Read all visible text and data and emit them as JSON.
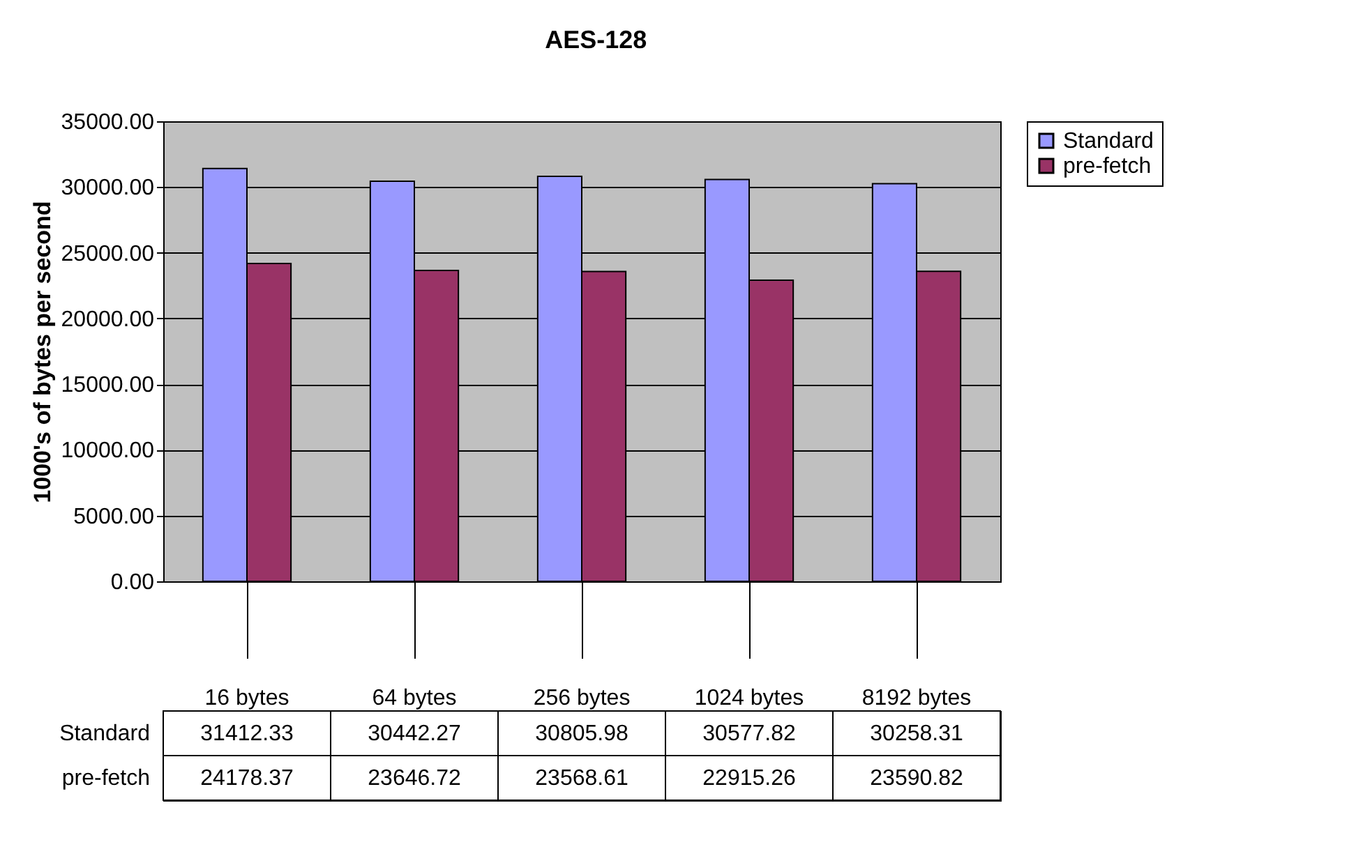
{
  "chart_data": {
    "type": "bar",
    "title": "AES-128",
    "ylabel": "1000's of bytes per second",
    "categories": [
      "16 bytes",
      "64 bytes",
      "256 bytes",
      "1024 bytes",
      "8192 bytes"
    ],
    "series": [
      {
        "name": "Standard",
        "color": "#9999ff",
        "values": [
          31412.33,
          30442.27,
          30805.98,
          30577.82,
          30258.31
        ]
      },
      {
        "name": "pre-fetch",
        "color": "#993366",
        "values": [
          24178.37,
          23646.72,
          23568.61,
          22915.26,
          23590.82
        ]
      }
    ],
    "ylim": [
      0,
      35000
    ],
    "yticks": [
      {
        "value": 0,
        "label": "0.00"
      },
      {
        "value": 5000,
        "label": "5000.00"
      },
      {
        "value": 10000,
        "label": "10000.00"
      },
      {
        "value": 15000,
        "label": "15000.00"
      },
      {
        "value": 20000,
        "label": "20000.00"
      },
      {
        "value": 25000,
        "label": "25000.00"
      },
      {
        "value": 30000,
        "label": "30000.00"
      },
      {
        "value": 35000,
        "label": "35000.00"
      }
    ],
    "grid": "y",
    "legend": "right",
    "data_labels": true
  }
}
